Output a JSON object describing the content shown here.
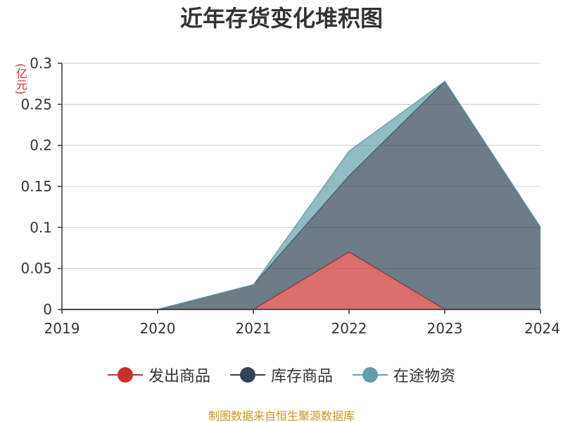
{
  "chart_data": {
    "type": "area",
    "title": "近年存货变化堆积图",
    "unit_label": "(亿元)",
    "categories": [
      "2019",
      "2020",
      "2021",
      "2022",
      "2023",
      "2024"
    ],
    "series": [
      {
        "name": "发出商品",
        "values": [
          0,
          0,
          0,
          0.07,
          0,
          0
        ],
        "color": "#c9302c"
      },
      {
        "name": "库存商品",
        "values": [
          0,
          0,
          0.03,
          0.093,
          0.278,
          0.1
        ],
        "color": "#2f4554"
      },
      {
        "name": "在途物资",
        "values": [
          0,
          0,
          0,
          0.03,
          0,
          0
        ],
        "color": "#61a0a8"
      }
    ],
    "stacked": true,
    "ylim": [
      0,
      0.3
    ],
    "yticks": [
      "0",
      "0.05",
      "0.1",
      "0.15",
      "0.2",
      "0.25",
      "0.3"
    ],
    "grid": true,
    "legend_position": "bottom"
  },
  "source": "制图数据来自恒生聚源数据库"
}
